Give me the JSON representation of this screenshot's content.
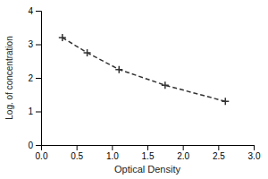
{
  "chart_data": {
    "type": "line",
    "x": [
      0.3,
      0.65,
      1.1,
      1.75,
      2.6
    ],
    "values": [
      3.2,
      2.75,
      2.25,
      1.78,
      1.3
    ],
    "xlabel": "Optical Density",
    "ylabel": "Log. of concentration",
    "xlim": [
      0,
      3
    ],
    "ylim": [
      0,
      4
    ],
    "xticks": [
      {
        "value": 0,
        "label": "0.0"
      },
      {
        "value": 0.5,
        "label": "0.5"
      },
      {
        "value": 1,
        "label": "1.0"
      },
      {
        "value": 1.5,
        "label": "1.5"
      },
      {
        "value": 2,
        "label": "2.0"
      },
      {
        "value": 2.5,
        "label": "2.5"
      },
      {
        "value": 3,
        "label": "3.0"
      }
    ],
    "yticks": [
      0,
      1,
      2,
      3,
      4
    ],
    "color": "#333333",
    "marker": "plus",
    "line_style": "dashed",
    "grid": false
  }
}
